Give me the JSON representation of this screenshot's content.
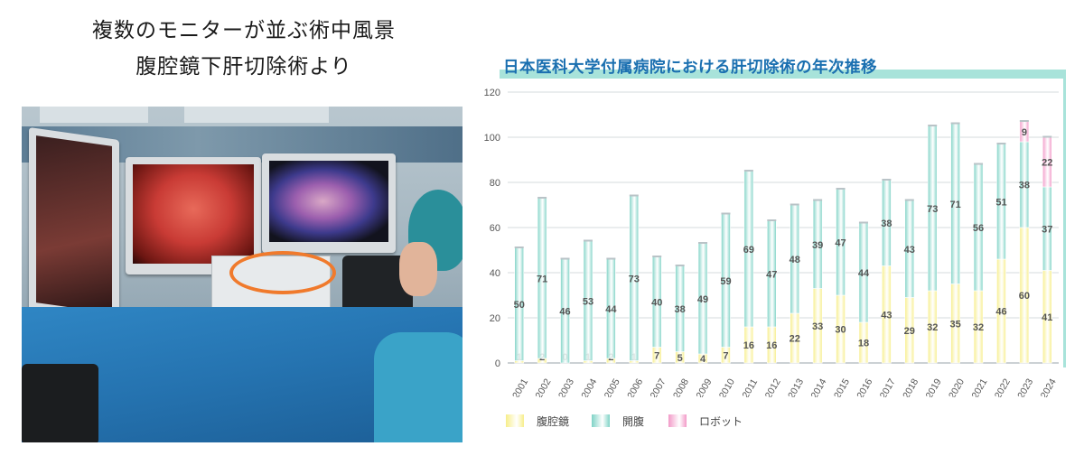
{
  "caption": {
    "line1": "複数のモニターが並ぶ術中風景",
    "line2": "腹腔鏡下肝切除術より"
  },
  "photo": {
    "description_icon": "operating-room-photo"
  },
  "chart_data": {
    "type": "bar",
    "title": "日本医科大学付属病院における肝切除術の年次推移",
    "categories": [
      "2001",
      "2002",
      "2003",
      "2004",
      "2005",
      "2006",
      "2007",
      "2008",
      "2009",
      "2010",
      "2011",
      "2012",
      "2013",
      "2014",
      "2015",
      "2016",
      "2017",
      "2018",
      "2019",
      "2020",
      "2021",
      "2022",
      "2023",
      "2024"
    ],
    "series": [
      {
        "name": "腹腔鏡",
        "color": "#f7ee8a",
        "values": [
          1,
          2,
          0,
          1,
          2,
          1,
          7,
          5,
          4,
          7,
          16,
          16,
          22,
          33,
          30,
          18,
          43,
          29,
          32,
          35,
          32,
          46,
          60,
          41
        ]
      },
      {
        "name": "開腹",
        "color": "#7fd3c6",
        "values": [
          50,
          71,
          46,
          53,
          44,
          73,
          40,
          38,
          49,
          59,
          69,
          47,
          48,
          39,
          47,
          44,
          38,
          43,
          73,
          71,
          56,
          51,
          38,
          37
        ]
      },
      {
        "name": "ロボット",
        "color": "#f29ac8",
        "values": [
          0,
          0,
          0,
          0,
          0,
          0,
          0,
          0,
          0,
          0,
          0,
          0,
          0,
          0,
          0,
          0,
          0,
          0,
          0,
          0,
          0,
          0,
          9,
          22
        ]
      }
    ],
    "ylim": [
      0,
      120
    ],
    "yticks": [
      0,
      20,
      40,
      60,
      80,
      100,
      120
    ],
    "stacked": true,
    "grid": true,
    "legend_position": "bottom-left"
  }
}
